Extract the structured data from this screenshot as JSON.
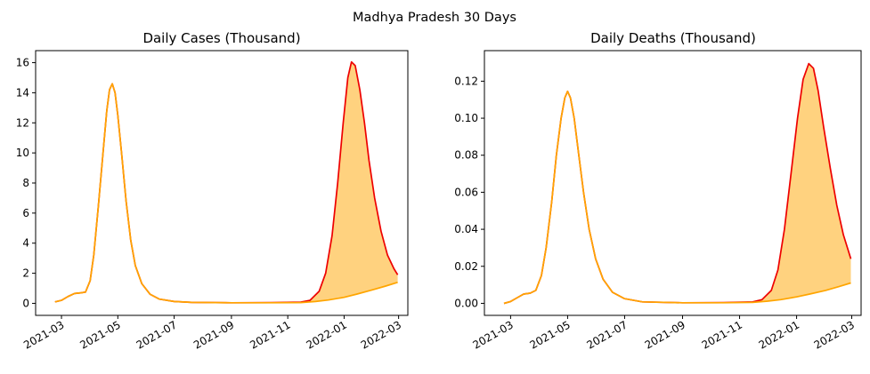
{
  "suptitle": "Madhya Pradesh 30 Days",
  "colors": {
    "scenario_line": "#ee0000",
    "baseline_line": "#ffa500",
    "fill": "#ffd27f",
    "axes": "#000000"
  },
  "chart_data": [
    {
      "type": "area",
      "title": "Daily Cases (Thousand)",
      "xlabel": "",
      "ylabel": "",
      "x_range": [
        "2021-02-01",
        "2022-03-11"
      ],
      "ylim": [
        -0.8,
        16.8
      ],
      "y_ticks": [
        0,
        2,
        4,
        6,
        8,
        10,
        12,
        14,
        16
      ],
      "x_ticks": [
        "2021-03",
        "2021-05",
        "2021-07",
        "2021-09",
        "2021-11",
        "2022-01",
        "2022-03"
      ],
      "grid": false,
      "legend": "none",
      "series": [
        {
          "color": "#ee0000",
          "points": [
            [
              "2021-02-22",
              0.1
            ],
            [
              "2021-03-01",
              0.2
            ],
            [
              "2021-03-08",
              0.45
            ],
            [
              "2021-03-15",
              0.65
            ],
            [
              "2021-03-22",
              0.7
            ],
            [
              "2021-03-27",
              0.75
            ],
            [
              "2021-04-01",
              1.5
            ],
            [
              "2021-04-05",
              3.2
            ],
            [
              "2021-04-10",
              6.5
            ],
            [
              "2021-04-15",
              10.0
            ],
            [
              "2021-04-19",
              12.8
            ],
            [
              "2021-04-22",
              14.2
            ],
            [
              "2021-04-25",
              14.6
            ],
            [
              "2021-04-28",
              14.0
            ],
            [
              "2021-05-01",
              12.5
            ],
            [
              "2021-05-05",
              10.0
            ],
            [
              "2021-05-10",
              6.8
            ],
            [
              "2021-05-15",
              4.2
            ],
            [
              "2021-05-20",
              2.5
            ],
            [
              "2021-05-27",
              1.3
            ],
            [
              "2021-06-05",
              0.6
            ],
            [
              "2021-06-15",
              0.28
            ],
            [
              "2021-07-01",
              0.12
            ],
            [
              "2021-07-20",
              0.06
            ],
            [
              "2021-09-01",
              0.04
            ],
            [
              "2021-10-15",
              0.05
            ],
            [
              "2021-11-15",
              0.08
            ],
            [
              "2021-11-25",
              0.2
            ],
            [
              "2021-12-05",
              0.8
            ],
            [
              "2021-12-12",
              2.0
            ],
            [
              "2021-12-19",
              4.5
            ],
            [
              "2021-12-25",
              8.0
            ],
            [
              "2021-12-31",
              12.0
            ],
            [
              "2022-01-05",
              15.0
            ],
            [
              "2022-01-09",
              16.05
            ],
            [
              "2022-01-13",
              15.8
            ],
            [
              "2022-01-18",
              14.2
            ],
            [
              "2022-01-23",
              12.0
            ],
            [
              "2022-01-28",
              9.5
            ],
            [
              "2022-02-03",
              7.0
            ],
            [
              "2022-02-10",
              4.8
            ],
            [
              "2022-02-17",
              3.2
            ],
            [
              "2022-02-24",
              2.3
            ],
            [
              "2022-02-28",
              1.9
            ]
          ]
        },
        {
          "color": "#ffa500",
          "points": [
            [
              "2021-02-22",
              0.1
            ],
            [
              "2021-03-01",
              0.2
            ],
            [
              "2021-03-08",
              0.45
            ],
            [
              "2021-03-15",
              0.65
            ],
            [
              "2021-03-22",
              0.7
            ],
            [
              "2021-03-27",
              0.75
            ],
            [
              "2021-04-01",
              1.5
            ],
            [
              "2021-04-05",
              3.2
            ],
            [
              "2021-04-10",
              6.5
            ],
            [
              "2021-04-15",
              10.0
            ],
            [
              "2021-04-19",
              12.8
            ],
            [
              "2021-04-22",
              14.2
            ],
            [
              "2021-04-25",
              14.6
            ],
            [
              "2021-04-28",
              14.0
            ],
            [
              "2021-05-01",
              12.5
            ],
            [
              "2021-05-05",
              10.0
            ],
            [
              "2021-05-10",
              6.8
            ],
            [
              "2021-05-15",
              4.2
            ],
            [
              "2021-05-20",
              2.5
            ],
            [
              "2021-05-27",
              1.3
            ],
            [
              "2021-06-05",
              0.6
            ],
            [
              "2021-06-15",
              0.28
            ],
            [
              "2021-07-01",
              0.12
            ],
            [
              "2021-07-20",
              0.06
            ],
            [
              "2021-09-01",
              0.04
            ],
            [
              "2021-10-15",
              0.04
            ],
            [
              "2021-11-15",
              0.05
            ],
            [
              "2021-12-01",
              0.12
            ],
            [
              "2021-12-15",
              0.22
            ],
            [
              "2022-01-01",
              0.4
            ],
            [
              "2022-01-15",
              0.62
            ],
            [
              "2022-02-01",
              0.9
            ],
            [
              "2022-02-15",
              1.15
            ],
            [
              "2022-02-28",
              1.4
            ]
          ]
        }
      ]
    },
    {
      "type": "area",
      "title": "Daily Deaths (Thousand)",
      "xlabel": "",
      "ylabel": "",
      "x_range": [
        "2021-02-01",
        "2022-03-11"
      ],
      "ylim": [
        -0.0065,
        0.1365
      ],
      "y_ticks": [
        0.0,
        0.02,
        0.04,
        0.06,
        0.08,
        0.1,
        0.12
      ],
      "y_tick_labels": [
        "0.00",
        "0.02",
        "0.04",
        "0.06",
        "0.08",
        "0.10",
        "0.12"
      ],
      "x_ticks": [
        "2021-03",
        "2021-05",
        "2021-07",
        "2021-09",
        "2021-11",
        "2022-01",
        "2022-03"
      ],
      "grid": false,
      "legend": "none",
      "series": [
        {
          "color": "#ee0000",
          "points": [
            [
              "2021-02-22",
              0.0
            ],
            [
              "2021-03-01",
              0.001
            ],
            [
              "2021-03-08",
              0.003
            ],
            [
              "2021-03-15",
              0.005
            ],
            [
              "2021-03-22",
              0.0055
            ],
            [
              "2021-03-28",
              0.007
            ],
            [
              "2021-04-03",
              0.015
            ],
            [
              "2021-04-08",
              0.03
            ],
            [
              "2021-04-14",
              0.055
            ],
            [
              "2021-04-19",
              0.08
            ],
            [
              "2021-04-24",
              0.1
            ],
            [
              "2021-04-28",
              0.111
            ],
            [
              "2021-05-01",
              0.1145
            ],
            [
              "2021-05-04",
              0.111
            ],
            [
              "2021-05-08",
              0.1
            ],
            [
              "2021-05-13",
              0.08
            ],
            [
              "2021-05-18",
              0.06
            ],
            [
              "2021-05-24",
              0.04
            ],
            [
              "2021-05-31",
              0.024
            ],
            [
              "2021-06-08",
              0.013
            ],
            [
              "2021-06-18",
              0.006
            ],
            [
              "2021-07-01",
              0.0025
            ],
            [
              "2021-07-20",
              0.0008
            ],
            [
              "2021-09-01",
              0.0003
            ],
            [
              "2021-10-15",
              0.0004
            ],
            [
              "2021-11-15",
              0.0008
            ],
            [
              "2021-11-25",
              0.002
            ],
            [
              "2021-12-05",
              0.007
            ],
            [
              "2021-12-12",
              0.018
            ],
            [
              "2021-12-19",
              0.04
            ],
            [
              "2021-12-26",
              0.07
            ],
            [
              "2022-01-02",
              0.1
            ],
            [
              "2022-01-08",
              0.121
            ],
            [
              "2022-01-14",
              0.1295
            ],
            [
              "2022-01-19",
              0.127
            ],
            [
              "2022-01-24",
              0.115
            ],
            [
              "2022-01-30",
              0.095
            ],
            [
              "2022-02-06",
              0.073
            ],
            [
              "2022-02-13",
              0.053
            ],
            [
              "2022-02-20",
              0.037
            ],
            [
              "2022-02-28",
              0.024
            ]
          ]
        },
        {
          "color": "#ffa500",
          "points": [
            [
              "2021-02-22",
              0.0
            ],
            [
              "2021-03-01",
              0.001
            ],
            [
              "2021-03-08",
              0.003
            ],
            [
              "2021-03-15",
              0.005
            ],
            [
              "2021-03-22",
              0.0055
            ],
            [
              "2021-03-28",
              0.007
            ],
            [
              "2021-04-03",
              0.015
            ],
            [
              "2021-04-08",
              0.03
            ],
            [
              "2021-04-14",
              0.055
            ],
            [
              "2021-04-19",
              0.08
            ],
            [
              "2021-04-24",
              0.1
            ],
            [
              "2021-04-28",
              0.111
            ],
            [
              "2021-05-01",
              0.1145
            ],
            [
              "2021-05-04",
              0.111
            ],
            [
              "2021-05-08",
              0.1
            ],
            [
              "2021-05-13",
              0.08
            ],
            [
              "2021-05-18",
              0.06
            ],
            [
              "2021-05-24",
              0.04
            ],
            [
              "2021-05-31",
              0.024
            ],
            [
              "2021-06-08",
              0.013
            ],
            [
              "2021-06-18",
              0.006
            ],
            [
              "2021-07-01",
              0.0025
            ],
            [
              "2021-07-20",
              0.0008
            ],
            [
              "2021-09-01",
              0.0003
            ],
            [
              "2021-10-15",
              0.0003
            ],
            [
              "2021-11-15",
              0.0005
            ],
            [
              "2021-12-01",
              0.0012
            ],
            [
              "2021-12-15",
              0.002
            ],
            [
              "2022-01-01",
              0.0035
            ],
            [
              "2022-01-15",
              0.005
            ],
            [
              "2022-02-01",
              0.007
            ],
            [
              "2022-02-15",
              0.009
            ],
            [
              "2022-02-28",
              0.011
            ]
          ]
        }
      ]
    }
  ]
}
